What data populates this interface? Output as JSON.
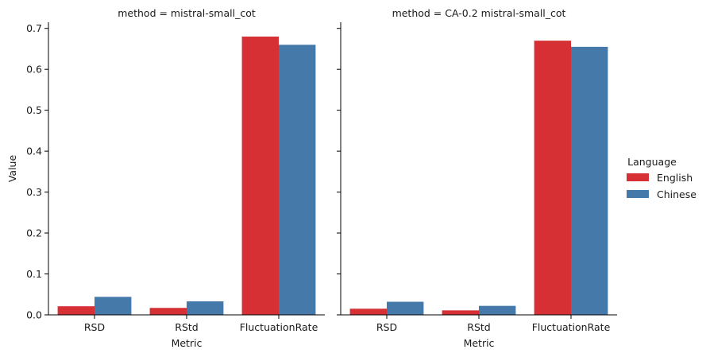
{
  "chart_data": {
    "type": "bar",
    "categories": [
      "RSD",
      "RStd",
      "FluctuationRate"
    ],
    "xlabel": "Metric",
    "ylabel": "Value",
    "ylim": [
      0,
      0.715
    ],
    "yticks": [
      "0.0",
      "0.1",
      "0.2",
      "0.3",
      "0.4",
      "0.5",
      "0.6",
      "0.7"
    ],
    "grid": false,
    "legend": {
      "title": "Language",
      "placement": "right",
      "entries": [
        "English",
        "Chinese"
      ]
    },
    "colors": {
      "English": "#d62f34",
      "Chinese": "#4479aa"
    },
    "panels": [
      {
        "title": "method = mistral-small_cot",
        "series": [
          {
            "name": "English",
            "values": [
              0.021,
              0.017,
              0.68
            ]
          },
          {
            "name": "Chinese",
            "values": [
              0.044,
              0.033,
              0.66
            ]
          }
        ]
      },
      {
        "title": "method = CA-0.2 mistral-small_cot",
        "series": [
          {
            "name": "English",
            "values": [
              0.015,
              0.011,
              0.67
            ]
          },
          {
            "name": "Chinese",
            "values": [
              0.032,
              0.022,
              0.655
            ]
          }
        ]
      }
    ]
  }
}
